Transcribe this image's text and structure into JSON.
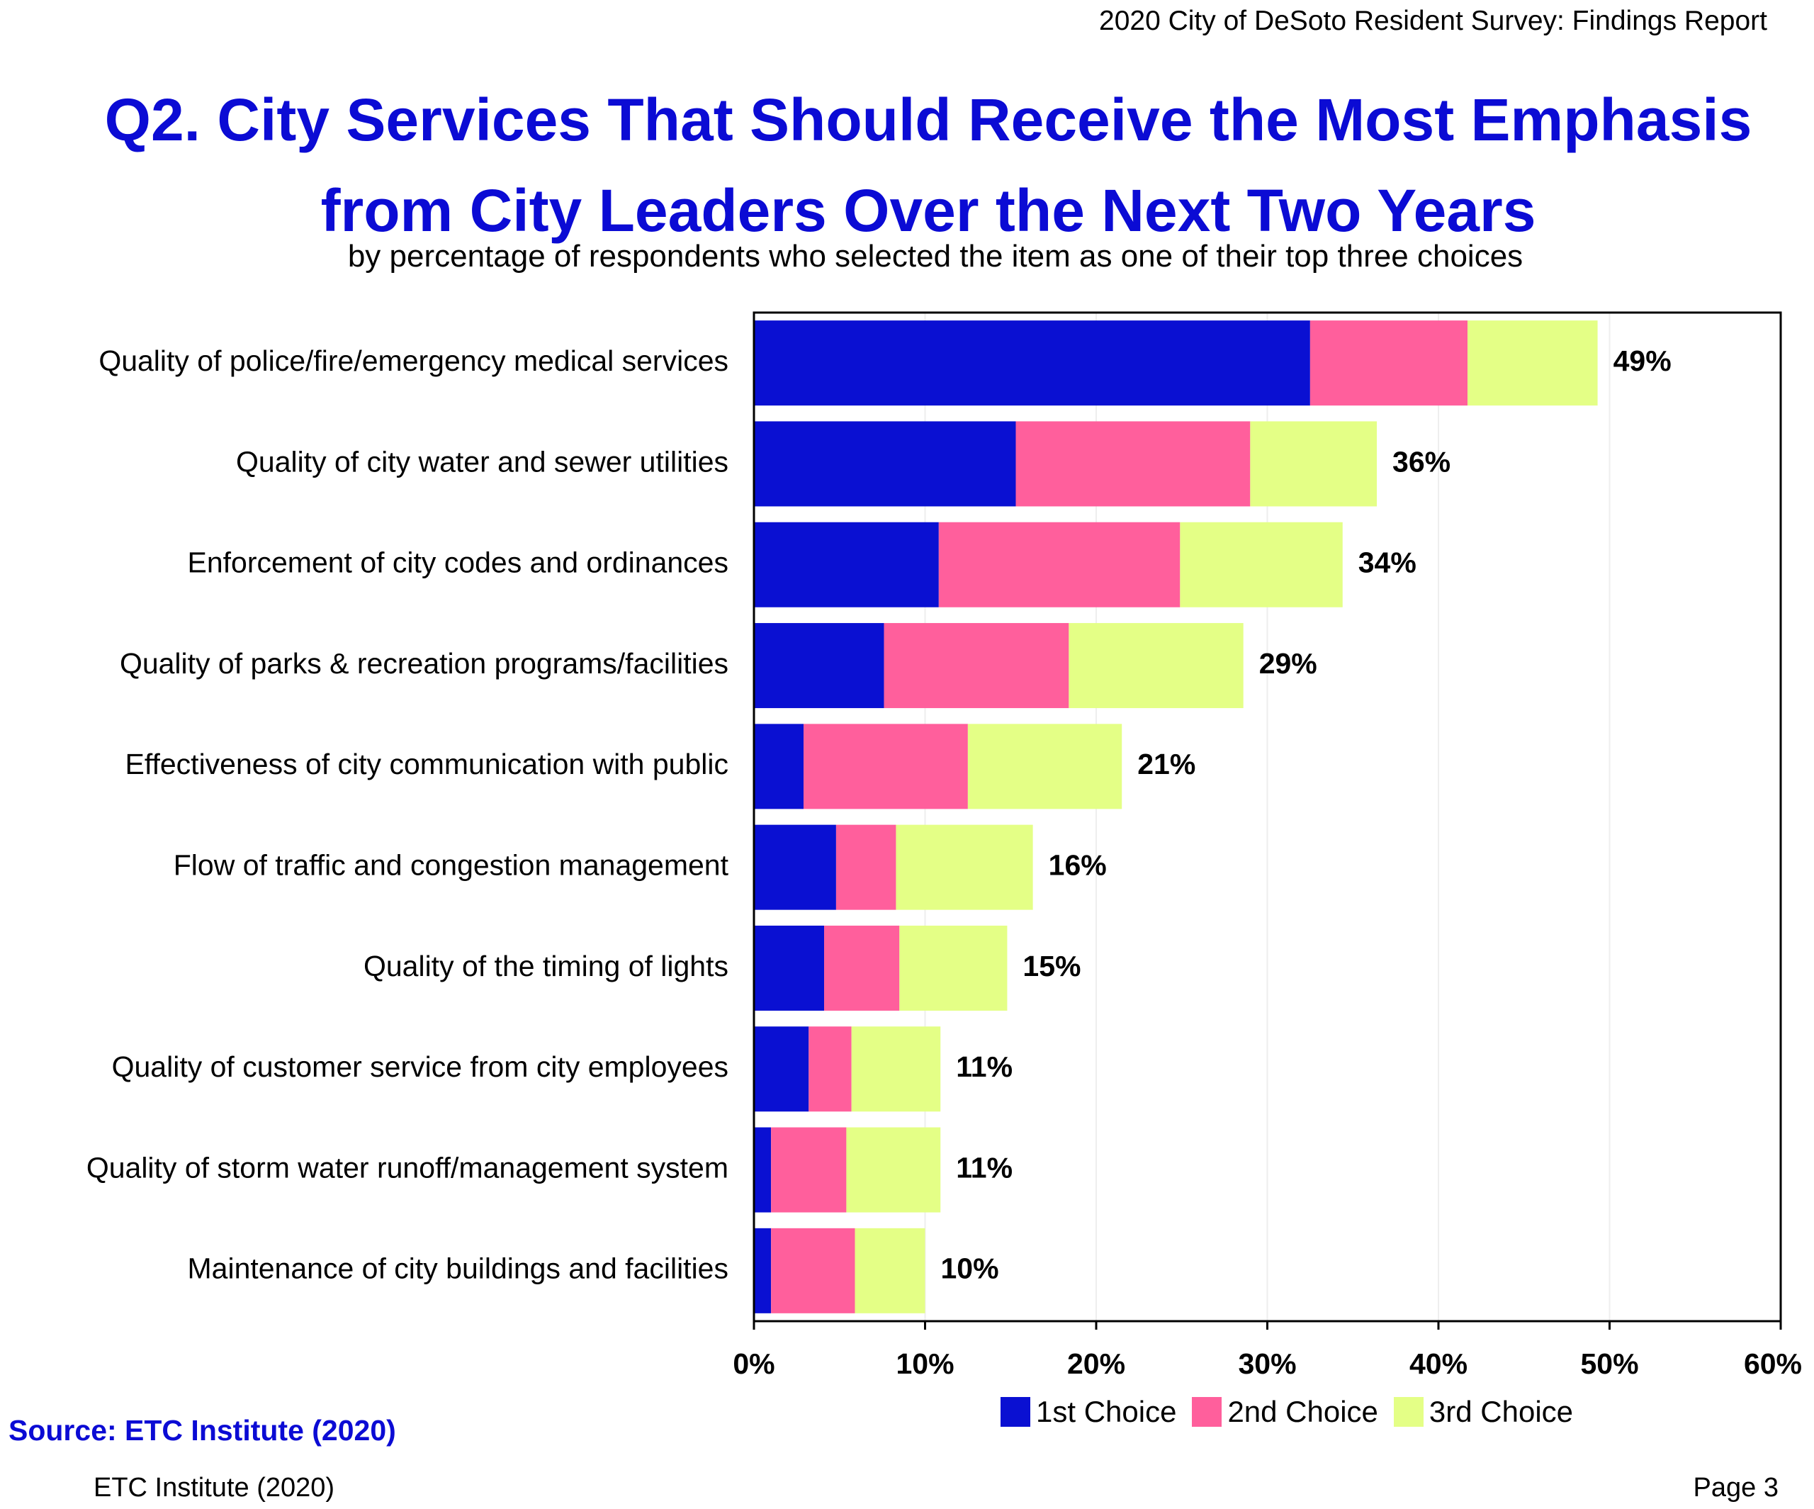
{
  "header": {
    "report_title": "2020 City of DeSoto Resident Survey:  Findings Report"
  },
  "title_lines": [
    "Q2. City Services That Should Receive the Most Emphasis",
    "from City Leaders Over the Next Two Years"
  ],
  "subtitle": "by percentage of respondents who selected the item as one of their top three choices",
  "chart_data": {
    "type": "bar",
    "orientation": "horizontal",
    "stacked": true,
    "categories": [
      "Quality of police/fire/emergency medical services",
      "Quality of city water and sewer utilities",
      "Enforcement of city codes and ordinances",
      "Quality of parks & recreation programs/facilities",
      "Effectiveness of city communication with public",
      "Flow of traffic and congestion management",
      "Quality of the timing of lights",
      "Quality of customer service from city employees",
      "Quality of storm water runoff/management system",
      "Maintenance of city buildings and facilities"
    ],
    "series": [
      {
        "name": "1st Choice",
        "color": "#0a10d2",
        "values": [
          32.5,
          15.3,
          10.8,
          7.6,
          2.9,
          4.8,
          4.1,
          3.2,
          1.0,
          1.0
        ]
      },
      {
        "name": "2nd Choice",
        "color": "#ff5f9c",
        "values": [
          9.2,
          13.7,
          14.1,
          10.8,
          9.6,
          3.5,
          4.4,
          2.5,
          4.4,
          4.9
        ]
      },
      {
        "name": "3rd Choice",
        "color": "#e4ff86",
        "values": [
          7.6,
          7.4,
          9.5,
          10.2,
          9.0,
          8.0,
          6.3,
          5.2,
          5.5,
          4.1
        ]
      }
    ],
    "total_labels": [
      "49%",
      "36%",
      "34%",
      "29%",
      "21%",
      "16%",
      "15%",
      "11%",
      "11%",
      "10%"
    ],
    "xlim": [
      0,
      60
    ],
    "xticks": [
      0,
      10,
      20,
      30,
      40,
      50,
      60
    ],
    "xtick_labels": [
      "0%",
      "10%",
      "20%",
      "30%",
      "40%",
      "50%",
      "60%"
    ],
    "grid": true,
    "legend_position": "bottom"
  },
  "source": "Source:   ETC Institute (2020)",
  "footer": {
    "left": "ETC Institute (2020)",
    "right": "Page 3"
  }
}
